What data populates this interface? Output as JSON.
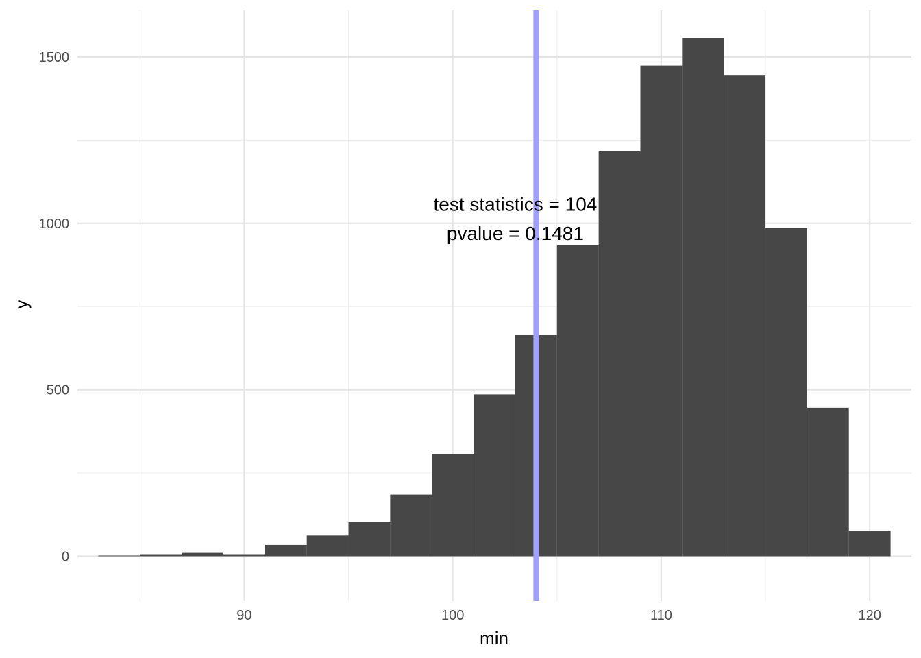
{
  "chart_data": {
    "type": "bar",
    "title": "",
    "xlabel": "min",
    "ylabel": "y",
    "xlim": [
      82,
      122
    ],
    "ylim": [
      -135,
      1640
    ],
    "bin_width": 2,
    "bins": [
      {
        "x": 84,
        "count": 2
      },
      {
        "x": 86,
        "count": 6
      },
      {
        "x": 88,
        "count": 10
      },
      {
        "x": 90,
        "count": 6
      },
      {
        "x": 92,
        "count": 34
      },
      {
        "x": 94,
        "count": 62
      },
      {
        "x": 96,
        "count": 102
      },
      {
        "x": 98,
        "count": 185
      },
      {
        "x": 100,
        "count": 306
      },
      {
        "x": 102,
        "count": 486
      },
      {
        "x": 104,
        "count": 664
      },
      {
        "x": 106,
        "count": 934
      },
      {
        "x": 108,
        "count": 1216
      },
      {
        "x": 110,
        "count": 1474
      },
      {
        "x": 112,
        "count": 1557
      },
      {
        "x": 114,
        "count": 1444
      },
      {
        "x": 116,
        "count": 986
      },
      {
        "x": 118,
        "count": 446
      },
      {
        "x": 120,
        "count": 76
      }
    ],
    "x_ticks": [
      90,
      100,
      110,
      120
    ],
    "x_tick_labels": [
      "90",
      "100",
      "110",
      "120"
    ],
    "x_minor_ticks": [
      85,
      95,
      105,
      115
    ],
    "y_ticks": [
      0,
      500,
      1000,
      1500
    ],
    "y_tick_labels": [
      "0",
      "500",
      "1000",
      "1500"
    ],
    "y_minor_ticks": [
      250,
      750,
      1250
    ],
    "grid": true,
    "reference_line": {
      "x": 104,
      "color": "#a0a0ff"
    },
    "annotation": {
      "line1": "test statistics = 104",
      "line2": "pvalue = 0.1481",
      "x": 103.0,
      "y1": 1038,
      "y2": 950
    },
    "colors": {
      "bar_fill": "#474747",
      "grid_major": "#e5e5e5",
      "grid_minor": "#f0f0f0",
      "background": "#ffffff"
    }
  }
}
